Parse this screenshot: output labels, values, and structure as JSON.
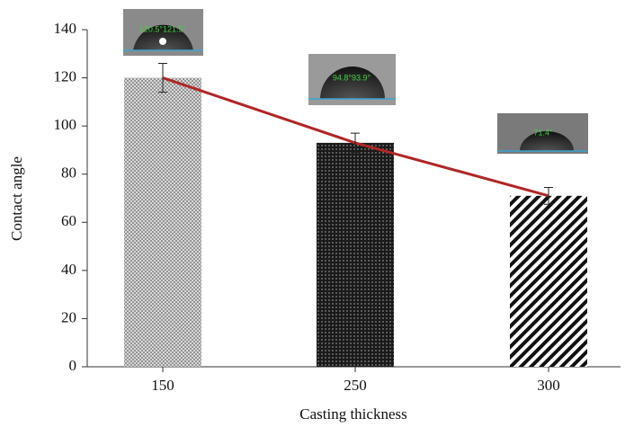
{
  "chart_data": {
    "type": "bar",
    "x_label": "Casting thickness",
    "y_label": "Contact angle",
    "categories": [
      "150",
      "250",
      "300"
    ],
    "values": [
      120,
      93,
      71
    ],
    "errors": [
      6,
      4,
      3.5
    ],
    "line_color": "#b02626",
    "ylim": [
      0,
      140
    ],
    "yticks": [
      0,
      20,
      40,
      60,
      80,
      100,
      120,
      140
    ],
    "annotations": [
      "120.5°121.5°",
      "94.8°93.9°",
      "71.4°"
    ]
  }
}
